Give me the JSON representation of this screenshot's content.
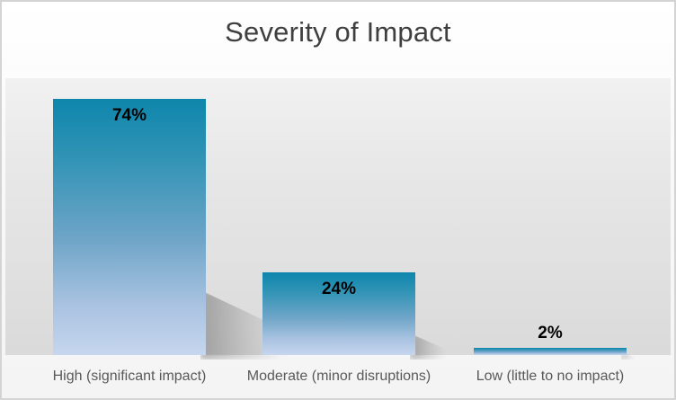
{
  "chart_data": {
    "type": "bar",
    "title": "Severity of Impact",
    "categories": [
      "High (significant impact)",
      "Moderate (minor disruptions)",
      "Low (little to no impact)"
    ],
    "values": [
      74,
      24,
      2
    ],
    "value_labels": [
      "74%",
      "24%",
      "2%"
    ],
    "unit": "%",
    "ylim": [
      0,
      80
    ],
    "grid": false,
    "legend": false,
    "colors": {
      "bar_gradient_top": "#0E86AC",
      "bar_gradient_bottom": "#C6D6EE",
      "title_text": "#3F3F3F",
      "category_text": "#595959",
      "value_text": "#000000",
      "card_border": "#D4D4D4",
      "plot_bg_top": "#F1F1F1",
      "plot_bg_bottom": "#DADADA"
    }
  }
}
